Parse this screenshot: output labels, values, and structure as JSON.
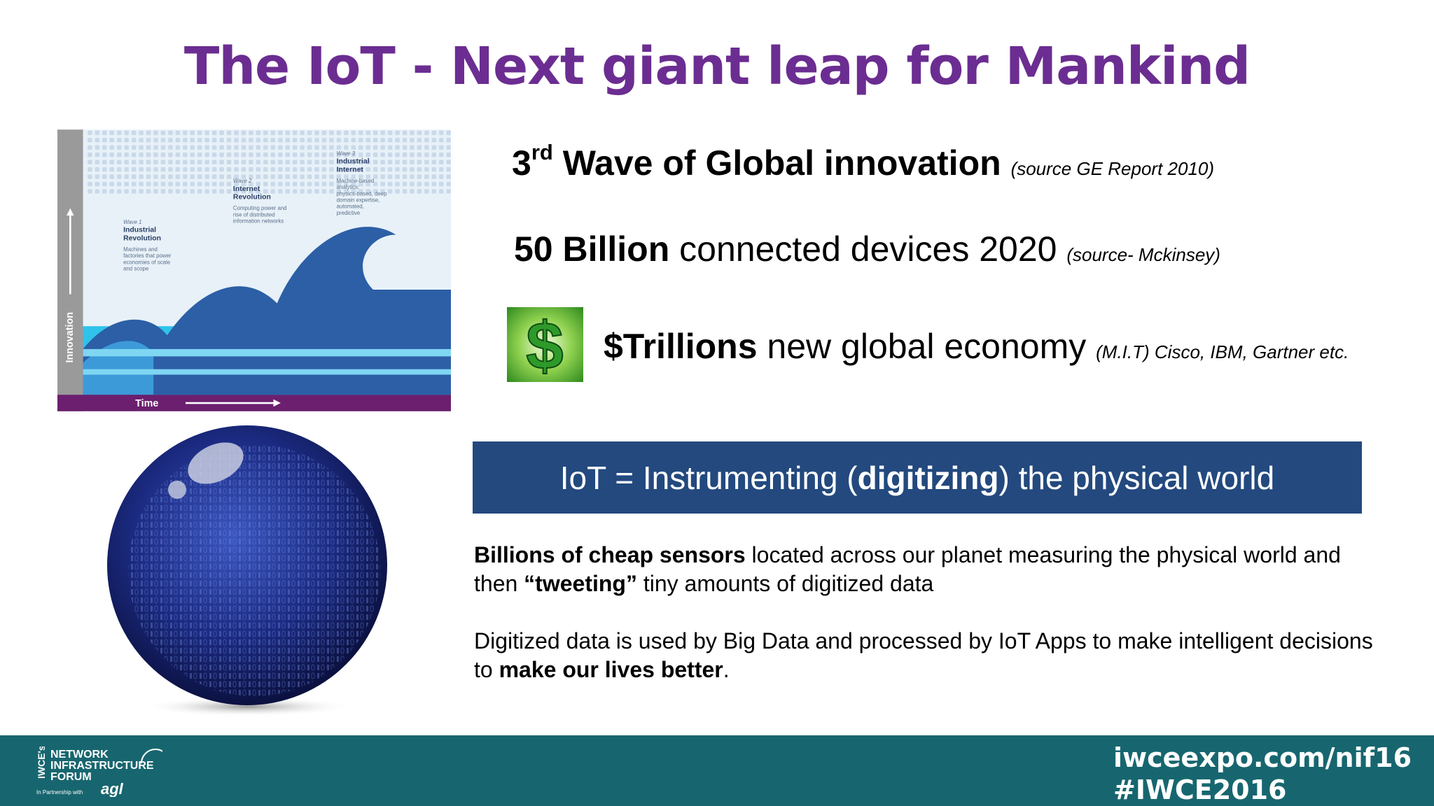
{
  "title": "The IoT - Next giant leap for Mankind",
  "wave_diagram": {
    "axis_y": "Innovation",
    "axis_x": "Time",
    "waves": [
      {
        "label": "Wave 1",
        "name": "Industrial Revolution",
        "description": "Machines and factories that power economies of scale and scope"
      },
      {
        "label": "Wave 2",
        "name": "Internet Revolution",
        "description": "Computing power and rise of distributed information networks"
      },
      {
        "label": "Wave 3",
        "name": "Industrial Internet",
        "description": "Machine-based analytics: physics-based, deep domain expertise, automated, predictive"
      }
    ]
  },
  "facts": [
    {
      "segments": [
        {
          "text": "3",
          "style": "bold"
        },
        {
          "text": "rd",
          "style": "sup"
        },
        {
          "text": " Wave of Global innovation ",
          "style": "bold"
        },
        {
          "text": "(source GE Report 2010)",
          "style": "source"
        }
      ]
    },
    {
      "segments": [
        {
          "text": "50 Billion",
          "style": "bold"
        },
        {
          "text": " connected devices 2020 ",
          "style": "normal"
        },
        {
          "text": "(source- Mckinsey)",
          "style": "source"
        }
      ]
    },
    {
      "segments": [
        {
          "text": "$Trillions",
          "style": "bold"
        },
        {
          "text": " new global economy ",
          "style": "normal"
        },
        {
          "text": "(M.I.T) Cisco, IBM, Gartner etc.",
          "style": "source"
        }
      ]
    }
  ],
  "icon_symbol": "$",
  "banner": {
    "segments": [
      {
        "text": "IoT = Instrumenting (",
        "style": "normal"
      },
      {
        "text": "digitizing",
        "style": "bold"
      },
      {
        "text": ") the physical world",
        "style": "normal"
      }
    ]
  },
  "paragraphs": [
    {
      "segments": [
        {
          "text": "Billions of cheap sensors",
          "style": "bold"
        },
        {
          "text": " located across our planet measuring the physical world and then ",
          "style": "normal"
        },
        {
          "text": "“tweeting”",
          "style": "bold"
        },
        {
          "text": " tiny amounts of digitized data",
          "style": "normal"
        }
      ]
    },
    {
      "segments": [
        {
          "text": "Digitized data is used by Big Data and processed by IoT Apps to make intelligent decisions to ",
          "style": "normal"
        },
        {
          "text": "make our lives better",
          "style": "bold"
        },
        {
          "text": ".",
          "style": "normal"
        }
      ]
    }
  ],
  "footer": {
    "logo": {
      "prefix": "IWCE's",
      "lines": [
        "NETWORK",
        "INFRASTRUCTURE",
        "FORUM"
      ],
      "partner_text": "In Partnership with",
      "partner": "agl"
    },
    "url": "iwceexpo.com/nif16",
    "hashtag": "#IWCE2016"
  }
}
